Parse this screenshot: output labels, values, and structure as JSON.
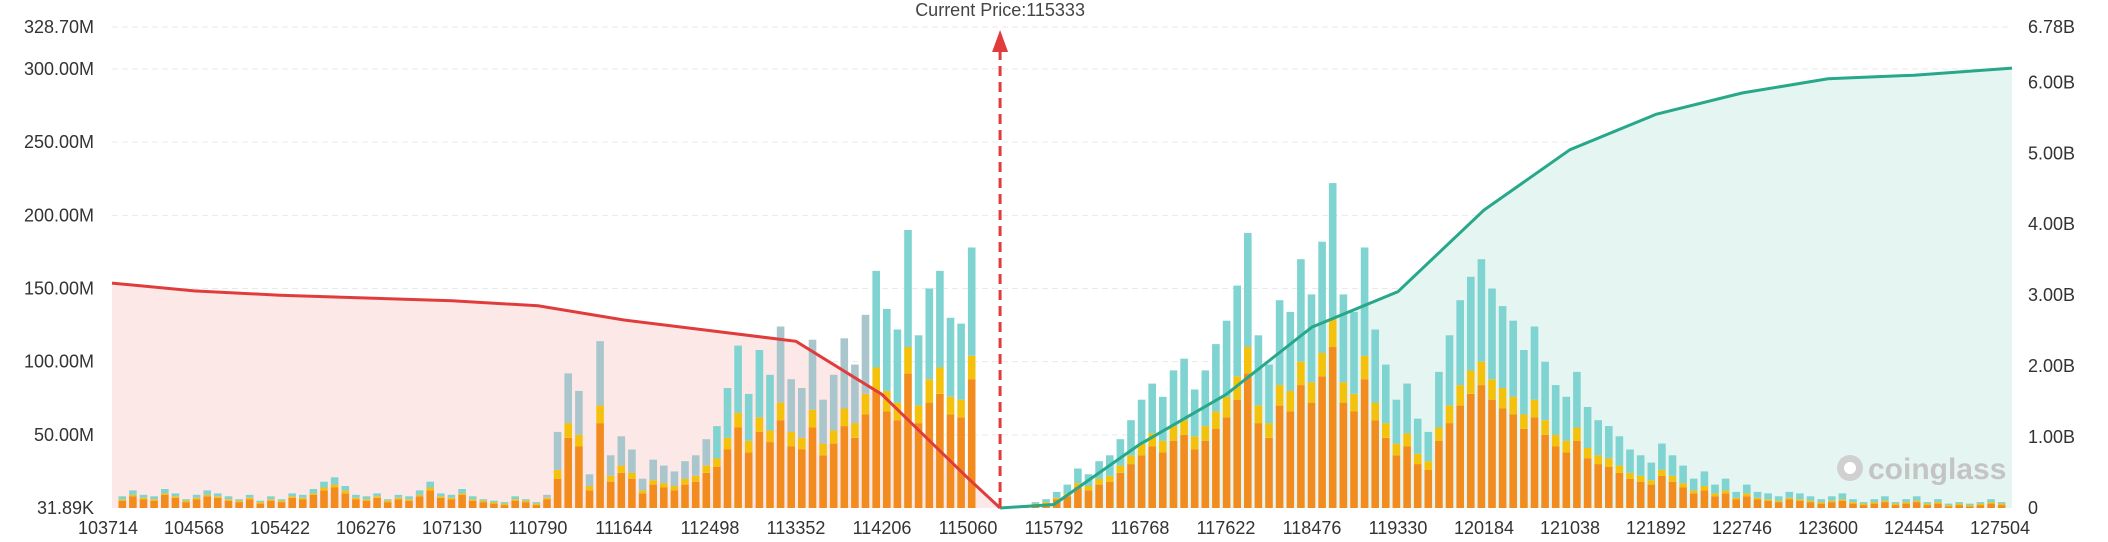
{
  "chart_data": {
    "type": "bar",
    "title": "",
    "current_price_label": "Current Price:115333",
    "current_price": 115333,
    "watermark": "coinglass",
    "x_range": [
      103714,
      128000
    ],
    "x_ticks": [
      "103714",
      "104568",
      "105422",
      "106276",
      "107130",
      "110790",
      "111644",
      "112498",
      "113352",
      "114206",
      "115060",
      "115792",
      "116768",
      "117622",
      "118476",
      "119330",
      "120184",
      "121038",
      "121892",
      "122746",
      "123600",
      "124454",
      "127504"
    ],
    "y_left_ticks": [
      "31.89K",
      "50.00M",
      "100.00M",
      "150.00M",
      "200.00M",
      "250.00M",
      "300.00M",
      "328.70M"
    ],
    "y_right_ticks": [
      "0",
      "1.00B",
      "2.00B",
      "3.00B",
      "4.00B",
      "5.00B",
      "6.00B",
      "6.78B"
    ],
    "ylim_left": [
      0,
      328.7
    ],
    "ylim_right": [
      0,
      6.78
    ],
    "y_left_unit": "M",
    "y_right_unit": "B",
    "colors": {
      "leverage_low": "#f28c1e",
      "leverage_mid": "#f4c20d",
      "leverage_high_teal": "#7fd3d0",
      "leverage_high_grey": "#a8c6cc",
      "cum_short": "#e03c3c",
      "cum_long": "#27a88a",
      "fill_short": "#fde8e8",
      "fill_long": "#e5f5f1",
      "price_line": "#e03c3c"
    },
    "series": [
      {
        "name": "",
        "values": [
          5,
          8,
          6,
          5,
          9,
          7,
          4,
          6,
          8,
          7,
          5,
          4,
          6,
          3,
          5,
          4,
          7,
          6,
          9,
          12,
          14,
          10,
          6,
          5,
          7,
          4,
          6,
          5,
          8,
          12,
          7,
          6,
          9,
          5,
          4,
          3,
          2,
          5,
          4,
          2,
          6,
          20,
          48,
          42,
          12,
          58,
          18,
          24,
          20,
          10,
          16,
          14,
          12,
          16,
          18,
          24,
          28,
          40,
          55,
          38,
          52,
          45,
          60,
          42,
          40,
          55,
          36,
          44,
          56,
          48,
          64,
          80,
          66,
          60,
          92,
          58,
          72,
          78,
          64,
          62,
          88,
          0,
          0,
          0,
          0,
          1,
          2,
          3,
          6,
          8,
          14,
          12,
          16,
          18,
          24,
          30,
          36,
          42,
          38,
          46,
          50,
          40,
          46,
          54,
          62,
          74,
          92,
          58,
          48,
          70,
          66,
          84,
          72,
          90,
          110,
          72,
          66,
          88,
          60,
          48,
          36,
          42,
          30,
          26,
          46,
          58,
          70,
          78,
          84,
          74,
          68,
          64,
          54,
          62,
          50,
          42,
          38,
          46,
          34,
          30,
          28,
          24,
          20,
          18,
          16,
          22,
          18,
          14,
          10,
          12,
          8,
          10,
          6,
          8,
          6,
          5,
          4,
          6,
          5,
          4,
          3,
          4,
          5,
          3,
          2,
          3,
          4,
          2,
          3,
          4,
          2,
          3,
          1,
          2,
          1,
          2,
          3,
          2
        ]
      },
      {
        "name": "",
        "values": [
          1,
          1,
          1,
          1,
          1,
          1,
          1,
          1,
          1,
          1,
          1,
          1,
          1,
          1,
          1,
          1,
          1,
          1,
          1,
          2,
          2,
          2,
          1,
          1,
          1,
          1,
          1,
          1,
          1,
          2,
          1,
          1,
          1,
          1,
          1,
          1,
          1,
          1,
          1,
          1,
          1,
          6,
          10,
          8,
          3,
          12,
          4,
          5,
          4,
          2,
          3,
          3,
          3,
          4,
          4,
          5,
          6,
          8,
          10,
          8,
          10,
          8,
          12,
          10,
          8,
          12,
          8,
          9,
          12,
          10,
          14,
          16,
          14,
          12,
          18,
          12,
          16,
          18,
          12,
          12,
          16,
          0,
          0,
          0,
          0,
          0,
          1,
          1,
          1,
          2,
          3,
          3,
          4,
          4,
          5,
          6,
          8,
          9,
          8,
          10,
          10,
          9,
          10,
          12,
          14,
          16,
          18,
          12,
          10,
          14,
          14,
          16,
          14,
          16,
          20,
          14,
          12,
          16,
          12,
          10,
          8,
          9,
          7,
          6,
          9,
          12,
          14,
          16,
          16,
          14,
          14,
          12,
          10,
          12,
          10,
          8,
          8,
          9,
          7,
          6,
          6,
          5,
          4,
          4,
          3,
          4,
          4,
          3,
          2,
          3,
          2,
          2,
          1,
          2,
          1,
          1,
          1,
          1,
          1,
          1,
          1,
          1,
          1,
          1,
          1,
          1,
          1,
          1,
          1,
          1,
          1,
          1,
          1,
          1,
          1,
          1,
          1,
          1
        ]
      },
      {
        "name": "",
        "values": [
          2,
          3,
          2,
          2,
          3,
          2,
          1,
          2,
          3,
          2,
          2,
          1,
          2,
          1,
          2,
          1,
          2,
          2,
          3,
          4,
          5,
          3,
          2,
          2,
          2,
          1,
          2,
          2,
          3,
          4,
          2,
          2,
          3,
          2,
          1,
          1,
          1,
          2,
          1,
          1,
          2,
          26,
          34,
          30,
          8,
          44,
          14,
          20,
          16,
          8,
          14,
          12,
          10,
          12,
          14,
          18,
          22,
          34,
          46,
          32,
          46,
          38,
          52,
          36,
          34,
          48,
          30,
          38,
          48,
          40,
          54,
          66,
          56,
          50,
          80,
          48,
          62,
          66,
          54,
          52,
          74,
          0,
          0,
          0,
          0,
          1,
          1,
          2,
          4,
          6,
          10,
          8,
          12,
          14,
          18,
          24,
          30,
          34,
          30,
          38,
          42,
          32,
          38,
          46,
          52,
          62,
          78,
          48,
          40,
          58,
          54,
          70,
          60,
          76,
          92,
          60,
          56,
          74,
          50,
          40,
          30,
          34,
          24,
          20,
          38,
          48,
          58,
          64,
          70,
          62,
          56,
          52,
          44,
          50,
          40,
          34,
          30,
          38,
          28,
          24,
          22,
          20,
          16,
          14,
          12,
          18,
          14,
          12,
          8,
          10,
          6,
          8,
          4,
          6,
          4,
          4,
          3,
          4,
          4,
          3,
          2,
          3,
          4,
          2,
          1,
          2,
          3,
          1,
          2,
          3,
          1,
          2,
          1,
          1,
          1,
          1,
          2,
          1
        ]
      },
      {
        "name": "",
        "values": [
          1,
          1,
          1,
          1,
          1,
          1,
          1,
          1,
          1,
          1,
          1,
          1,
          1,
          1,
          1,
          1,
          1,
          1,
          1,
          1,
          1,
          1,
          1,
          1,
          1,
          1,
          1,
          1,
          1,
          1,
          1,
          1,
          1,
          1,
          1,
          1,
          1,
          1,
          1,
          1,
          1,
          2,
          3,
          2,
          1,
          3,
          1,
          2,
          2,
          1,
          1,
          1,
          1,
          1,
          1,
          2,
          2,
          3,
          3,
          2,
          3,
          3,
          4,
          3,
          3,
          4,
          2,
          3,
          4,
          3,
          4,
          5,
          4,
          4,
          6,
          4,
          5,
          5,
          4,
          4,
          5,
          0,
          0,
          0,
          0,
          0,
          0,
          0,
          1,
          1,
          1,
          1,
          1,
          1,
          2,
          2,
          3,
          3,
          2,
          3,
          3,
          3,
          3,
          4,
          4,
          5,
          6,
          4,
          3,
          4,
          4,
          5,
          4,
          5,
          6,
          4,
          4,
          5,
          4,
          3,
          2,
          3,
          2,
          2,
          3,
          4,
          4,
          5,
          5,
          4,
          4,
          4,
          3,
          4,
          3,
          3,
          2,
          3,
          2,
          2,
          2,
          2,
          1,
          1,
          1,
          1,
          1,
          1,
          1,
          1,
          1,
          1,
          1,
          1,
          1,
          1,
          1,
          1,
          1,
          1,
          1,
          1,
          1,
          1,
          1,
          1,
          1,
          1,
          1,
          1,
          1,
          1,
          1,
          1,
          1,
          1,
          1,
          1
        ]
      }
    ],
    "cumulative_short": {
      "x": [
        103714,
        104568,
        105422,
        106276,
        107130,
        110790,
        111644,
        112498,
        113352,
        114206,
        115060,
        115333
      ],
      "y": [
        3.17,
        3.06,
        3.0,
        2.96,
        2.92,
        2.85,
        2.65,
        2.5,
        2.35,
        1.6,
        0.42,
        0.0
      ]
    },
    "cumulative_long": {
      "x": [
        115333,
        115792,
        116768,
        117622,
        118476,
        119330,
        120184,
        121038,
        121892,
        122746,
        123600,
        124454,
        127504
      ],
      "y": [
        0.0,
        0.05,
        0.9,
        1.6,
        2.55,
        3.05,
        4.2,
        5.05,
        5.55,
        5.85,
        6.05,
        6.1,
        6.2
      ]
    }
  }
}
